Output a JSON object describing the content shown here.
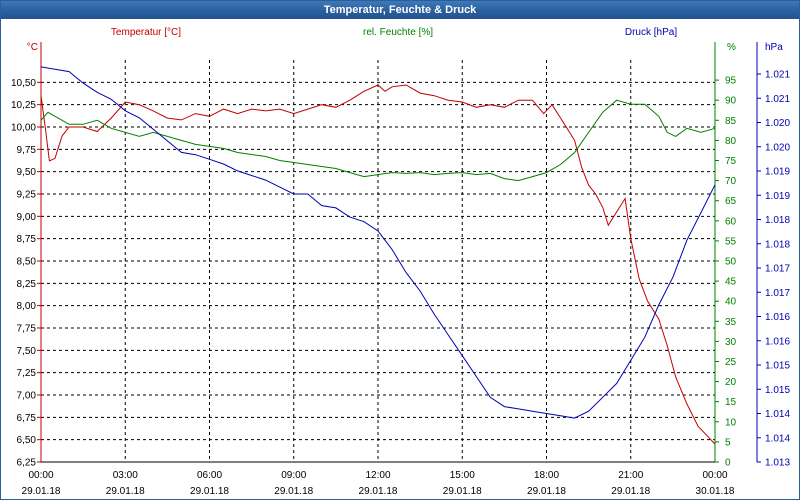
{
  "window": {
    "title": "Temperatur, Feuchte & Druck"
  },
  "colors": {
    "temperature": "#c00000",
    "humidity": "#008000",
    "pressure": "#0000b4",
    "grid": "#000000",
    "axis_text": "#000000",
    "title_bar": "#2a5f9e"
  },
  "chart_data": {
    "type": "line",
    "grid": true,
    "x_axis": {
      "range": [
        "00:00 29.01.18",
        "00:00 30.01.18"
      ],
      "ticks": [
        {
          "time": "00:00",
          "date": "29.01.18"
        },
        {
          "time": "03:00",
          "date": "29.01.18"
        },
        {
          "time": "06:00",
          "date": "29.01.18"
        },
        {
          "time": "09:00",
          "date": "29.01.18"
        },
        {
          "time": "12:00",
          "date": "29.01.18"
        },
        {
          "time": "15:00",
          "date": "29.01.18"
        },
        {
          "time": "18:00",
          "date": "29.01.18"
        },
        {
          "time": "21:00",
          "date": "29.01.18"
        },
        {
          "time": "00:00",
          "date": "30.01.18"
        }
      ]
    },
    "axes": {
      "temperature": {
        "label": "Temperatur [°C]",
        "unit": "°C",
        "ylim": [
          6.25,
          10.75
        ],
        "ticks": [
          "10,50",
          "10,25",
          "10,00",
          "9,75",
          "9,50",
          "9,25",
          "9,00",
          "8,75",
          "8,50",
          "8,25",
          "8,00",
          "7,75",
          "7,50",
          "7,25",
          "7,00",
          "6,75",
          "6,50",
          "6,25"
        ]
      },
      "humidity": {
        "label": "rel. Feuchte [%]",
        "unit": "%",
        "ylim": [
          0,
          100
        ],
        "ticks": [
          "95",
          "90",
          "85",
          "80",
          "75",
          "70",
          "65",
          "60",
          "55",
          "50",
          "45",
          "40",
          "35",
          "30",
          "25",
          "20",
          "15",
          "10",
          "5",
          "0"
        ]
      },
      "pressure": {
        "label": "Druck [hPa]",
        "unit": "hPa",
        "ylim": [
          1013.0,
          1021.7
        ],
        "ticks": [
          "1.021",
          "1.021",
          "1.020",
          "1.020",
          "1.019",
          "1.019",
          "1.018",
          "1.018",
          "1.017",
          "1.017",
          "1.016",
          "1.016",
          "1.015",
          "1.015",
          "1.014",
          "1.014",
          "1.013"
        ]
      }
    },
    "series": [
      {
        "name": "Temperatur [°C]",
        "axis": "temperature",
        "points": [
          [
            0,
            10.35
          ],
          [
            0.15,
            10.0
          ],
          [
            0.3,
            9.62
          ],
          [
            0.5,
            9.65
          ],
          [
            0.75,
            9.9
          ],
          [
            1.0,
            10.0
          ],
          [
            1.5,
            10.0
          ],
          [
            2.0,
            9.95
          ],
          [
            2.5,
            10.1
          ],
          [
            3.0,
            10.28
          ],
          [
            3.5,
            10.25
          ],
          [
            4.0,
            10.18
          ],
          [
            4.5,
            10.1
          ],
          [
            5.0,
            10.08
          ],
          [
            5.5,
            10.15
          ],
          [
            6.0,
            10.12
          ],
          [
            6.5,
            10.2
          ],
          [
            7.0,
            10.15
          ],
          [
            7.5,
            10.2
          ],
          [
            8.0,
            10.18
          ],
          [
            8.5,
            10.2
          ],
          [
            9.0,
            10.15
          ],
          [
            9.5,
            10.2
          ],
          [
            10.0,
            10.25
          ],
          [
            10.5,
            10.22
          ],
          [
            11.0,
            10.3
          ],
          [
            11.5,
            10.4
          ],
          [
            12.0,
            10.47
          ],
          [
            12.25,
            10.4
          ],
          [
            12.5,
            10.45
          ],
          [
            13.0,
            10.47
          ],
          [
            13.5,
            10.38
          ],
          [
            14.0,
            10.35
          ],
          [
            14.5,
            10.3
          ],
          [
            15.0,
            10.28
          ],
          [
            15.5,
            10.22
          ],
          [
            16.0,
            10.25
          ],
          [
            16.5,
            10.22
          ],
          [
            17.0,
            10.3
          ],
          [
            17.5,
            10.3
          ],
          [
            17.9,
            10.15
          ],
          [
            18.2,
            10.25
          ],
          [
            18.6,
            10.05
          ],
          [
            19.0,
            9.85
          ],
          [
            19.25,
            9.55
          ],
          [
            19.5,
            9.35
          ],
          [
            19.75,
            9.25
          ],
          [
            20.0,
            9.1
          ],
          [
            20.2,
            8.9
          ],
          [
            20.5,
            9.05
          ],
          [
            20.8,
            9.2
          ],
          [
            21.0,
            8.75
          ],
          [
            21.3,
            8.3
          ],
          [
            21.6,
            8.05
          ],
          [
            22.0,
            7.85
          ],
          [
            22.3,
            7.55
          ],
          [
            22.6,
            7.2
          ],
          [
            23.0,
            6.9
          ],
          [
            23.4,
            6.65
          ],
          [
            23.7,
            6.55
          ],
          [
            24.0,
            6.45
          ]
        ]
      },
      {
        "name": "rel. Feuchte [%]",
        "axis": "humidity",
        "points": [
          [
            0,
            85
          ],
          [
            0.25,
            87
          ],
          [
            0.5,
            86
          ],
          [
            1.0,
            84
          ],
          [
            1.5,
            84
          ],
          [
            2.0,
            85
          ],
          [
            2.5,
            83
          ],
          [
            3.0,
            82
          ],
          [
            3.5,
            81
          ],
          [
            4.0,
            82
          ],
          [
            4.5,
            81
          ],
          [
            5.0,
            80
          ],
          [
            5.5,
            79
          ],
          [
            6.0,
            78.5
          ],
          [
            6.5,
            78
          ],
          [
            7.0,
            77
          ],
          [
            7.5,
            76.5
          ],
          [
            8.0,
            76
          ],
          [
            8.5,
            75
          ],
          [
            9.0,
            74.5
          ],
          [
            9.5,
            74
          ],
          [
            10.0,
            73.5
          ],
          [
            10.5,
            73
          ],
          [
            11.0,
            72
          ],
          [
            11.5,
            71
          ],
          [
            12.0,
            71.5
          ],
          [
            12.5,
            72
          ],
          [
            13.0,
            71.8
          ],
          [
            13.5,
            72
          ],
          [
            14.0,
            71.5
          ],
          [
            14.5,
            71.8
          ],
          [
            15.0,
            72
          ],
          [
            15.5,
            71.5
          ],
          [
            16.0,
            71.8
          ],
          [
            16.5,
            70.5
          ],
          [
            17.0,
            70
          ],
          [
            17.5,
            71
          ],
          [
            18.0,
            72
          ],
          [
            18.5,
            74
          ],
          [
            19.0,
            77
          ],
          [
            19.5,
            82
          ],
          [
            20.0,
            87
          ],
          [
            20.5,
            90
          ],
          [
            21.0,
            89
          ],
          [
            21.5,
            89
          ],
          [
            22.0,
            86
          ],
          [
            22.3,
            82
          ],
          [
            22.6,
            81
          ],
          [
            23.0,
            83
          ],
          [
            23.5,
            82
          ],
          [
            24.0,
            83
          ]
        ]
      },
      {
        "name": "Druck [hPa]",
        "axis": "pressure",
        "points": [
          [
            0,
            1021.55
          ],
          [
            0.5,
            1021.5
          ],
          [
            1.0,
            1021.45
          ],
          [
            1.5,
            1021.2
          ],
          [
            2.0,
            1021.0
          ],
          [
            2.5,
            1020.85
          ],
          [
            3.0,
            1020.6
          ],
          [
            3.5,
            1020.45
          ],
          [
            4.0,
            1020.2
          ],
          [
            4.5,
            1019.95
          ],
          [
            5.0,
            1019.7
          ],
          [
            5.5,
            1019.65
          ],
          [
            6.0,
            1019.55
          ],
          [
            6.5,
            1019.45
          ],
          [
            7.0,
            1019.3
          ],
          [
            7.5,
            1019.2
          ],
          [
            8.0,
            1019.1
          ],
          [
            8.5,
            1018.95
          ],
          [
            9.0,
            1018.8
          ],
          [
            9.5,
            1018.8
          ],
          [
            10.0,
            1018.55
          ],
          [
            10.5,
            1018.5
          ],
          [
            11.0,
            1018.3
          ],
          [
            11.5,
            1018.2
          ],
          [
            12.0,
            1018.0
          ],
          [
            12.5,
            1017.6
          ],
          [
            13.0,
            1017.1
          ],
          [
            13.5,
            1016.7
          ],
          [
            14.0,
            1016.2
          ],
          [
            14.5,
            1015.75
          ],
          [
            15.0,
            1015.3
          ],
          [
            15.5,
            1014.85
          ],
          [
            16.0,
            1014.4
          ],
          [
            16.5,
            1014.2
          ],
          [
            17.0,
            1014.15
          ],
          [
            17.5,
            1014.1
          ],
          [
            18.0,
            1014.05
          ],
          [
            18.5,
            1014.0
          ],
          [
            19.0,
            1013.95
          ],
          [
            19.5,
            1014.1
          ],
          [
            20.0,
            1014.4
          ],
          [
            20.5,
            1014.7
          ],
          [
            21.0,
            1015.2
          ],
          [
            21.5,
            1015.7
          ],
          [
            22.0,
            1016.4
          ],
          [
            22.5,
            1017.0
          ],
          [
            23.0,
            1017.8
          ],
          [
            23.5,
            1018.4
          ],
          [
            24.0,
            1019.0
          ]
        ]
      }
    ]
  }
}
